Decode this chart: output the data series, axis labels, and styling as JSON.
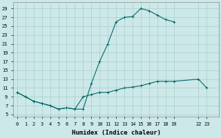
{
  "xlabel": "Humidex (Indice chaleur)",
  "background_color": "#cce8e8",
  "line_color": "#006666",
  "marker_color": "#006666",
  "grid_color": "#aacccc",
  "xlim": [
    -0.5,
    24.5
  ],
  "ylim": [
    4.5,
    30.5
  ],
  "xticks": [
    0,
    1,
    2,
    3,
    4,
    5,
    6,
    7,
    8,
    9,
    10,
    11,
    12,
    13,
    14,
    15,
    16,
    17,
    18,
    19,
    22,
    23
  ],
  "yticks": [
    5,
    7,
    9,
    11,
    13,
    15,
    17,
    19,
    21,
    23,
    25,
    27,
    29
  ],
  "path1_x": [
    0,
    1,
    2,
    3,
    4,
    5,
    6,
    7,
    8,
    9,
    10,
    11,
    12,
    13,
    14,
    15,
    16,
    17,
    18,
    19
  ],
  "path1_y": [
    10,
    9,
    8,
    7.5,
    7,
    6.2,
    6.5,
    6.2,
    6.2,
    12,
    17,
    21,
    26,
    27,
    27.2,
    29,
    28.5,
    27.5,
    26.5,
    26
  ],
  "path2_x": [
    0,
    1,
    2,
    3,
    4,
    5,
    6,
    7,
    8,
    9,
    10,
    11,
    12,
    13,
    14,
    15,
    16,
    17,
    18,
    19,
    22,
    23
  ],
  "path2_y": [
    10,
    9,
    8,
    7.5,
    7,
    6.2,
    6.5,
    6.2,
    9,
    9.5,
    10,
    10,
    10.5,
    11,
    11.2,
    11.5,
    12,
    12.5,
    12.5,
    12.5,
    13,
    11
  ],
  "figsize": [
    3.2,
    2.0
  ],
  "dpi": 100
}
